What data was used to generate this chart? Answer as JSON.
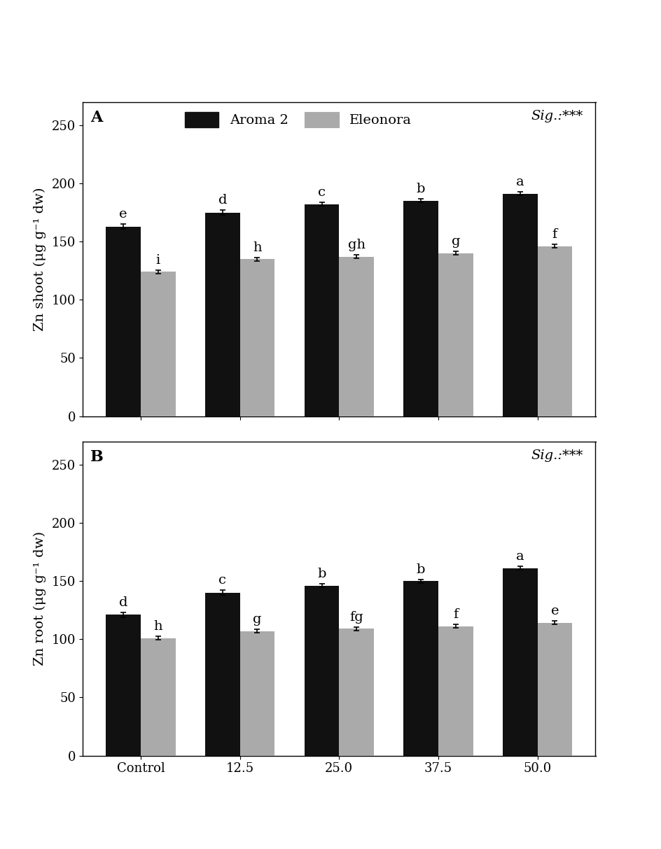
{
  "categories": [
    "Control",
    "12.5",
    "25.0",
    "37.5",
    "50.0"
  ],
  "panel_A": {
    "label": "A",
    "ylabel": "Zn shoot (μg g⁻¹ dw)",
    "ylim": [
      0,
      270
    ],
    "yticks": [
      0,
      50,
      100,
      150,
      200,
      250
    ],
    "aroma2_values": [
      163,
      175,
      182,
      185,
      191
    ],
    "eleonora_values": [
      124,
      135,
      137,
      140,
      146
    ],
    "aroma2_errors": [
      2.0,
      2.0,
      1.5,
      1.5,
      1.5
    ],
    "eleonora_errors": [
      1.5,
      1.5,
      1.5,
      1.5,
      1.5
    ],
    "aroma2_labels": [
      "e",
      "d",
      "c",
      "b",
      "a"
    ],
    "eleonora_labels": [
      "i",
      "h",
      "gh",
      "g",
      "f"
    ],
    "sig_text": "Sig.:***"
  },
  "panel_B": {
    "label": "B",
    "ylabel": "Zn root (μg g⁻¹ dw)",
    "ylim": [
      0,
      270
    ],
    "yticks": [
      0,
      50,
      100,
      150,
      200,
      250
    ],
    "aroma2_values": [
      121,
      140,
      146,
      150,
      161
    ],
    "eleonora_values": [
      101,
      107,
      109,
      111,
      114
    ],
    "aroma2_errors": [
      2.0,
      2.0,
      1.5,
      1.5,
      1.5
    ],
    "eleonora_errors": [
      1.5,
      1.5,
      1.5,
      1.5,
      1.5
    ],
    "aroma2_labels": [
      "d",
      "c",
      "b",
      "b",
      "a"
    ],
    "eleonora_labels": [
      "h",
      "g",
      "fg",
      "f",
      "e"
    ],
    "sig_text": "Sig.:***"
  },
  "aroma2_color": "#111111",
  "eleonora_color": "#aaaaaa",
  "bar_width": 0.35,
  "legend_aroma2": "Aroma 2",
  "legend_eleonora": "Eleonora",
  "label_fontsize": 14,
  "tick_fontsize": 13,
  "annot_fontsize": 14,
  "panel_label_fontsize": 16,
  "sig_fontsize": 14,
  "legend_fontsize": 14
}
